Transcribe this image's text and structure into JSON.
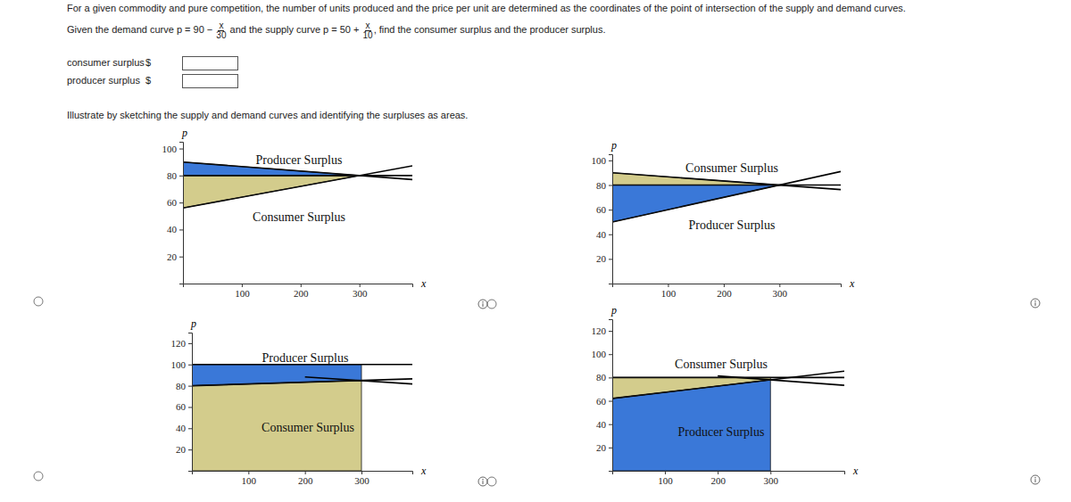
{
  "question": {
    "line1": "For a given commodity and pure competition, the number of units produced and the price per unit are determined as the coordinates of the point of intersection of the supply and demand curves.",
    "line2": [
      {
        "text": "Given the demand curve p = 90 − "
      },
      {
        "num": "x",
        "den": "30"
      },
      {
        "text": " and the supply curve p = 50 + "
      },
      {
        "num": "x",
        "den": "10"
      },
      {
        "text": ", find the consumer surplus and the producer surplus."
      }
    ]
  },
  "answers": [
    {
      "label": "consumer surplus",
      "unit": "$"
    },
    {
      "label": "producer surplus",
      "unit": "$"
    }
  ],
  "instruction": "Illustrate by sketching the supply and demand curves and identifying the surpluses as areas.",
  "chart_data": [
    {
      "type": "line",
      "x_label": "x",
      "y_label": "p",
      "xlim": [
        0,
        390
      ],
      "ylim": [
        0,
        105
      ],
      "xticks": [
        100,
        200,
        300
      ],
      "yticks": [
        20,
        40,
        60,
        80,
        100
      ],
      "areas": [
        {
          "label": "Producer Surplus",
          "color": "#3a78d8",
          "x": [
            0,
            300,
            0
          ],
          "values": [
            90,
            80,
            80
          ]
        },
        {
          "label": "Consumer Surplus",
          "color": "#d3cc8c",
          "x": [
            0,
            300,
            0
          ],
          "values": [
            80,
            80,
            56
          ]
        }
      ],
      "series": [
        {
          "color": "#000000",
          "x": [
            0,
            390
          ],
          "values": [
            90,
            77
          ]
        },
        {
          "color": "#000000",
          "x": [
            0,
            390
          ],
          "values": [
            56,
            87.2
          ]
        },
        {
          "color": "#000000",
          "x": [
            0,
            390
          ],
          "values": [
            80,
            80
          ]
        }
      ]
    },
    {
      "type": "line",
      "x_label": "x",
      "y_label": "p",
      "xlim": [
        0,
        410
      ],
      "ylim": [
        0,
        105
      ],
      "xticks": [
        100,
        200,
        300
      ],
      "yticks": [
        20,
        40,
        60,
        80,
        100
      ],
      "areas": [
        {
          "label": "Consumer Surplus",
          "color": "#d3cc8c",
          "x": [
            0,
            300,
            0
          ],
          "values": [
            90,
            80,
            80
          ]
        },
        {
          "label": "Producer Surplus",
          "color": "#3a78d8",
          "x": [
            0,
            300,
            0
          ],
          "values": [
            80,
            80,
            50
          ]
        }
      ],
      "series": [
        {
          "color": "#000000",
          "x": [
            0,
            410
          ],
          "values": [
            90,
            76.3
          ]
        },
        {
          "color": "#000000",
          "x": [
            0,
            410
          ],
          "values": [
            50,
            91
          ]
        },
        {
          "color": "#000000",
          "x": [
            0,
            410
          ],
          "values": [
            80,
            80
          ]
        }
      ]
    },
    {
      "type": "line",
      "x_label": "x",
      "y_label": "p",
      "xlim": [
        0,
        390
      ],
      "ylim": [
        0,
        130
      ],
      "xticks": [
        100,
        200,
        300
      ],
      "yticks": [
        20,
        40,
        60,
        80,
        100,
        120
      ],
      "areas": [
        {
          "label": "Producer Surplus",
          "color": "#3a78d8",
          "x": [
            0,
            300,
            300,
            0
          ],
          "values": [
            100,
            100,
            85,
            80
          ]
        },
        {
          "label": "Consumer Surplus",
          "color": "#d3cc8c",
          "x": [
            0,
            300,
            300,
            0
          ],
          "values": [
            80,
            85,
            0,
            0
          ]
        }
      ],
      "series": [
        {
          "color": "#000000",
          "x": [
            0,
            390
          ],
          "values": [
            100,
            100
          ]
        },
        {
          "color": "#000000",
          "x": [
            0,
            390
          ],
          "values": [
            80,
            86.5
          ]
        },
        {
          "color": "#000000",
          "x": [
            200,
            390
          ],
          "values": [
            88.33,
            81.67
          ]
        }
      ]
    },
    {
      "type": "line",
      "x_label": "x",
      "y_label": "p",
      "xlim": [
        0,
        440
      ],
      "ylim": [
        0,
        130
      ],
      "xticks": [
        100,
        200,
        300
      ],
      "yticks": [
        20,
        40,
        60,
        80,
        100,
        120
      ],
      "areas": [
        {
          "label": "Consumer Surplus",
          "color": "#d3cc8c",
          "x": [
            0,
            300,
            300,
            0
          ],
          "values": [
            80,
            80,
            78,
            62
          ]
        },
        {
          "label": "Producer Surplus",
          "color": "#3a78d8",
          "x": [
            0,
            300,
            300,
            0
          ],
          "values": [
            62,
            78,
            0,
            0
          ]
        }
      ],
      "series": [
        {
          "color": "#000000",
          "x": [
            0,
            440
          ],
          "values": [
            80,
            80
          ]
        },
        {
          "color": "#000000",
          "x": [
            0,
            440
          ],
          "values": [
            62,
            85.47
          ]
        },
        {
          "color": "#000000",
          "x": [
            200,
            440
          ],
          "values": [
            81.33,
            73.33
          ]
        }
      ]
    }
  ]
}
